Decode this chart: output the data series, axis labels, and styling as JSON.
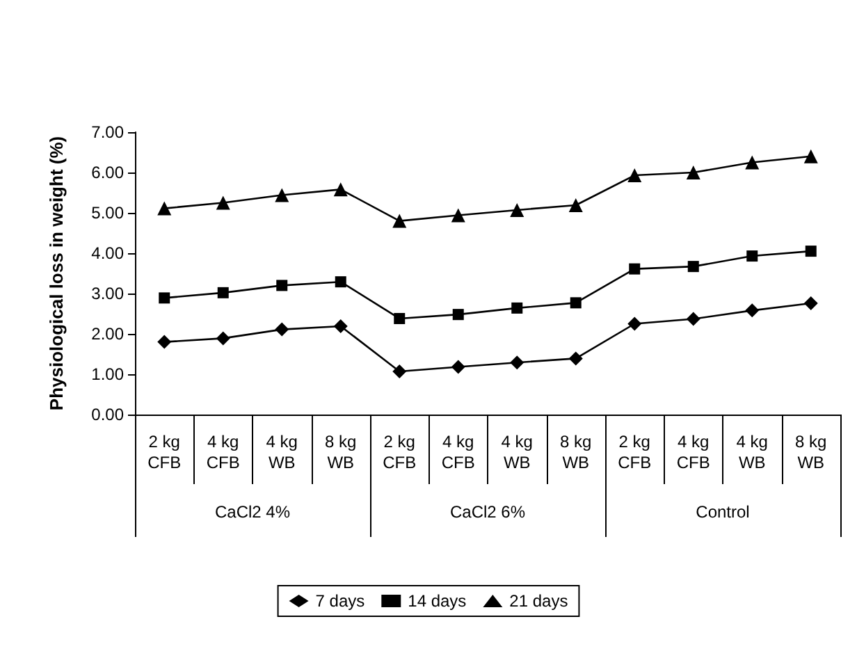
{
  "chart_data": {
    "type": "line",
    "ylabel": "Physiological loss in weight (%)",
    "categories": [
      "2 kg\nCFB",
      "4 kg\nCFB",
      "4 kg\nWB",
      "8 kg\nWB",
      "2 kg\nCFB",
      "4 kg\nCFB",
      "4 kg\nWB",
      "8 kg\nWB",
      "2 kg\nCFB",
      "4 kg\nCFB",
      "4 kg\nWB",
      "8 kg\nWB"
    ],
    "annotations": [
      "CaCl2 4%",
      "CaCl2 6%",
      "Control"
    ],
    "series": [
      {
        "name": "7 days",
        "color": "#000000",
        "marker": "diamond",
        "values": [
          1.8,
          1.89,
          2.11,
          2.19,
          1.07,
          1.18,
          1.29,
          1.39,
          2.25,
          2.37,
          2.58,
          2.76
        ]
      },
      {
        "name": "14 days",
        "color": "#000000",
        "marker": "square",
        "values": [
          2.89,
          3.02,
          3.2,
          3.29,
          2.38,
          2.48,
          2.64,
          2.77,
          3.61,
          3.67,
          3.93,
          4.05
        ]
      },
      {
        "name": "21 days",
        "color": "#000000",
        "marker": "triangle",
        "values": [
          5.11,
          5.25,
          5.44,
          5.58,
          4.8,
          4.94,
          5.07,
          5.19,
          5.93,
          6.0,
          6.25,
          6.4
        ]
      }
    ],
    "ylim": [
      0,
      7
    ],
    "yticks": [
      {
        "value": 0,
        "label": "0.00"
      },
      {
        "value": 1,
        "label": "1.00"
      },
      {
        "value": 2,
        "label": "2.00"
      },
      {
        "value": 3,
        "label": "3.00"
      },
      {
        "value": 4,
        "label": "4.00"
      },
      {
        "value": 5,
        "label": "5.00"
      },
      {
        "value": 6,
        "label": "6.00"
      },
      {
        "value": 7,
        "label": "7.00"
      }
    ],
    "grid": false,
    "legend": "bottom",
    "line_style": "solid"
  }
}
